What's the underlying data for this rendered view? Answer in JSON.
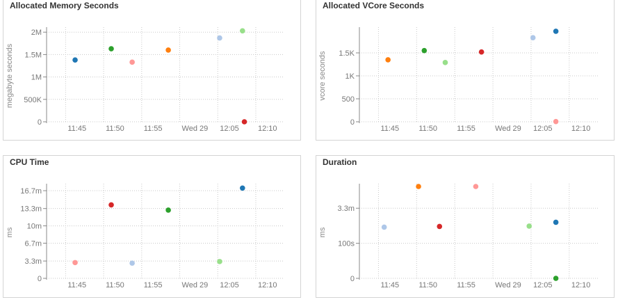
{
  "colors": {
    "blue": "#1f77b4",
    "green": "#2ca02c",
    "pink": "#ff9896",
    "orange": "#ff7f0e",
    "lightblue": "#aec7e8",
    "lightgreen": "#98df8a",
    "red": "#d62728",
    "grid": "#c8c8c8",
    "axis": "#888888",
    "border": "#d4d4d4"
  },
  "chart_data": [
    {
      "title": "Allocated Memory Seconds",
      "type": "scatter",
      "ylabel": "megabyte seconds",
      "xticks": [
        "11:45",
        "11:50",
        "11:55",
        "Wed 29",
        "12:05",
        "12:10"
      ],
      "xlim": [
        0,
        6.25
      ],
      "yticks": [
        "2M",
        "1.5M",
        "1M",
        "500K",
        "0"
      ],
      "ytick_values": [
        2000000,
        1500000,
        1000000,
        500000,
        0
      ],
      "ylim": [
        0,
        2050000
      ],
      "grid": true,
      "points": [
        {
          "x": 0.75,
          "y": 1380000,
          "color": "blue"
        },
        {
          "x": 1.7,
          "y": 1630000,
          "color": "green"
        },
        {
          "x": 2.25,
          "y": 1330000,
          "color": "pink"
        },
        {
          "x": 3.2,
          "y": 1600000,
          "color": "orange"
        },
        {
          "x": 4.55,
          "y": 1870000,
          "color": "lightblue"
        },
        {
          "x": 5.15,
          "y": 2030000,
          "color": "lightgreen"
        },
        {
          "x": 5.2,
          "y": 0,
          "color": "red"
        }
      ]
    },
    {
      "title": "Allocated VCore Seconds",
      "type": "scatter",
      "ylabel": "vcore seconds",
      "xticks": [
        "11:45",
        "11:50",
        "11:55",
        "Wed 29",
        "12:05",
        "12:10"
      ],
      "xlim": [
        0,
        6.25
      ],
      "yticks": [
        "1.5K",
        "1K",
        "500",
        "0"
      ],
      "ytick_values": [
        1500,
        1000,
        500,
        0
      ],
      "ylim": [
        0,
        2000
      ],
      "grid": true,
      "points": [
        {
          "x": 0.75,
          "y": 1350,
          "color": "orange"
        },
        {
          "x": 1.7,
          "y": 1550,
          "color": "green"
        },
        {
          "x": 2.25,
          "y": 1290,
          "color": "lightgreen"
        },
        {
          "x": 3.2,
          "y": 1520,
          "color": "red"
        },
        {
          "x": 4.55,
          "y": 1830,
          "color": "lightblue"
        },
        {
          "x": 5.15,
          "y": 1970,
          "color": "blue"
        },
        {
          "x": 5.15,
          "y": 5,
          "color": "pink"
        }
      ]
    },
    {
      "title": "CPU Time",
      "type": "scatter",
      "ylabel": "ms",
      "xticks": [
        "11:45",
        "11:50",
        "11:55",
        "Wed 29",
        "12:05",
        "12:10"
      ],
      "xlim": [
        0,
        6.25
      ],
      "yticks": [
        "16.7m",
        "13.3m",
        "10m",
        "6.7m",
        "3.3m",
        "0"
      ],
      "ytick_values": [
        16.7,
        13.3,
        10,
        6.7,
        3.3,
        0
      ],
      "ylim": [
        0,
        17.5
      ],
      "grid": true,
      "points": [
        {
          "x": 0.75,
          "y": 3.0,
          "color": "pink"
        },
        {
          "x": 1.7,
          "y": 14.0,
          "color": "red"
        },
        {
          "x": 2.25,
          "y": 2.9,
          "color": "lightblue"
        },
        {
          "x": 3.2,
          "y": 13.0,
          "color": "green"
        },
        {
          "x": 4.55,
          "y": 3.2,
          "color": "lightgreen"
        },
        {
          "x": 5.15,
          "y": 17.2,
          "color": "blue"
        }
      ]
    },
    {
      "title": "Duration",
      "type": "scatter",
      "ylabel": "ms",
      "xticks": [
        "11:45",
        "11:50",
        "11:55",
        "Wed 29",
        "12:05",
        "12:10"
      ],
      "xlim": [
        0,
        6.25
      ],
      "yticks": [
        "3.3m",
        "100s",
        "0"
      ],
      "ytick_values": [
        200,
        100,
        0
      ],
      "ylim": [
        0,
        262
      ],
      "grid": true,
      "points": [
        {
          "x": 0.65,
          "y": 146,
          "color": "lightblue"
        },
        {
          "x": 1.55,
          "y": 262,
          "color": "orange"
        },
        {
          "x": 2.1,
          "y": 148,
          "color": "red"
        },
        {
          "x": 3.05,
          "y": 262,
          "color": "pink"
        },
        {
          "x": 4.45,
          "y": 149,
          "color": "lightgreen"
        },
        {
          "x": 5.15,
          "y": 160,
          "color": "blue"
        },
        {
          "x": 5.15,
          "y": 0,
          "color": "green"
        }
      ]
    }
  ]
}
